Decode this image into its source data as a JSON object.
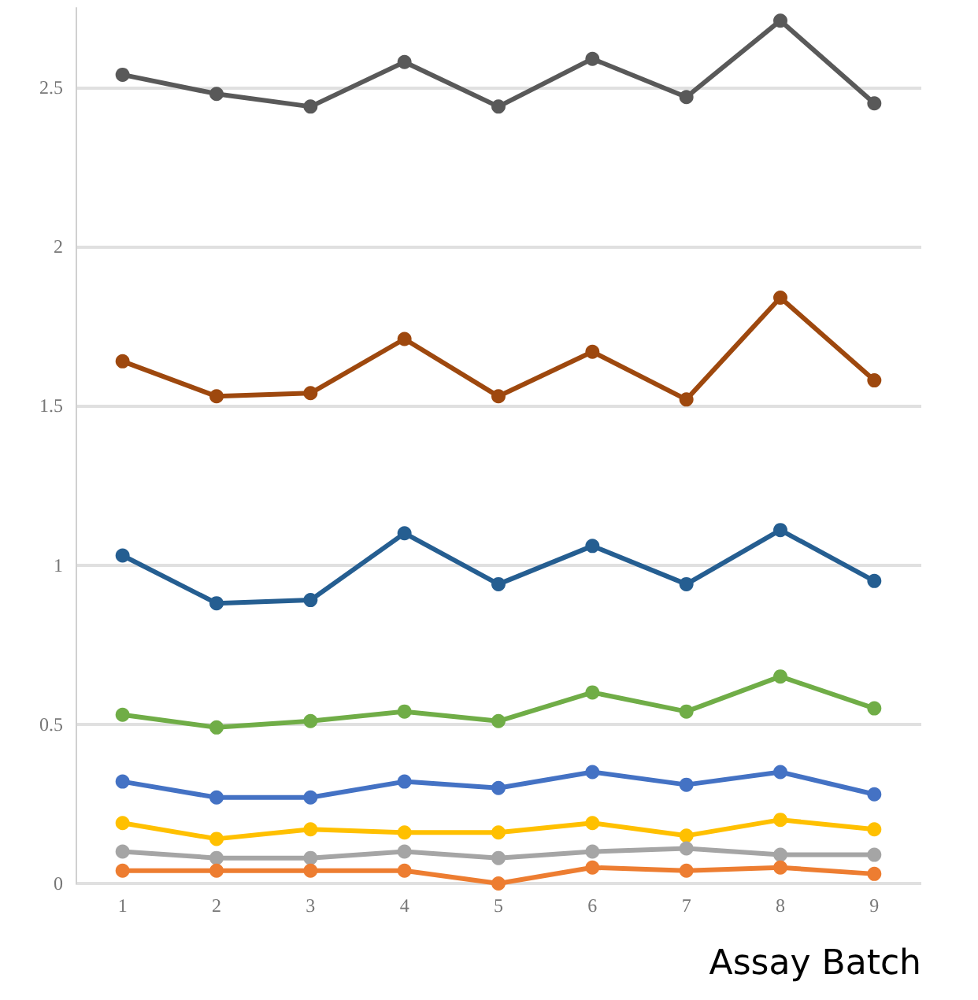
{
  "chart_data": {
    "type": "line",
    "xlabel": "Assay Batch",
    "categories": [
      "1",
      "2",
      "3",
      "4",
      "5",
      "6",
      "7",
      "8",
      "9"
    ],
    "ylim": [
      0,
      2.75
    ],
    "yticks": [
      0,
      0.5,
      1,
      1.5,
      2,
      2.5
    ],
    "grid": "y",
    "marker": "circle",
    "line_style": "solid",
    "series": [
      {
        "color": "#595959",
        "values": [
          2.54,
          2.48,
          2.44,
          2.58,
          2.44,
          2.59,
          2.47,
          2.71,
          2.45
        ]
      },
      {
        "color": "#9e480e",
        "values": [
          1.64,
          1.53,
          1.54,
          1.71,
          1.53,
          1.67,
          1.52,
          1.84,
          1.58
        ]
      },
      {
        "color": "#255e91",
        "values": [
          1.03,
          0.88,
          0.89,
          1.1,
          0.94,
          1.06,
          0.94,
          1.11,
          0.95
        ]
      },
      {
        "color": "#70ad47",
        "values": [
          0.53,
          0.49,
          0.51,
          0.54,
          0.51,
          0.6,
          0.54,
          0.65,
          0.55
        ]
      },
      {
        "color": "#4472c4",
        "values": [
          0.32,
          0.27,
          0.27,
          0.32,
          0.3,
          0.35,
          0.31,
          0.35,
          0.28
        ]
      },
      {
        "color": "#ffc000",
        "values": [
          0.19,
          0.14,
          0.17,
          0.16,
          0.16,
          0.19,
          0.15,
          0.2,
          0.17
        ]
      },
      {
        "color": "#a5a5a5",
        "values": [
          0.1,
          0.08,
          0.08,
          0.1,
          0.08,
          0.1,
          0.11,
          0.09,
          0.09
        ]
      },
      {
        "color": "#ed7d31",
        "values": [
          0.04,
          0.04,
          0.04,
          0.04,
          0,
          0.05,
          0.04,
          0.05,
          0.03
        ]
      }
    ]
  }
}
